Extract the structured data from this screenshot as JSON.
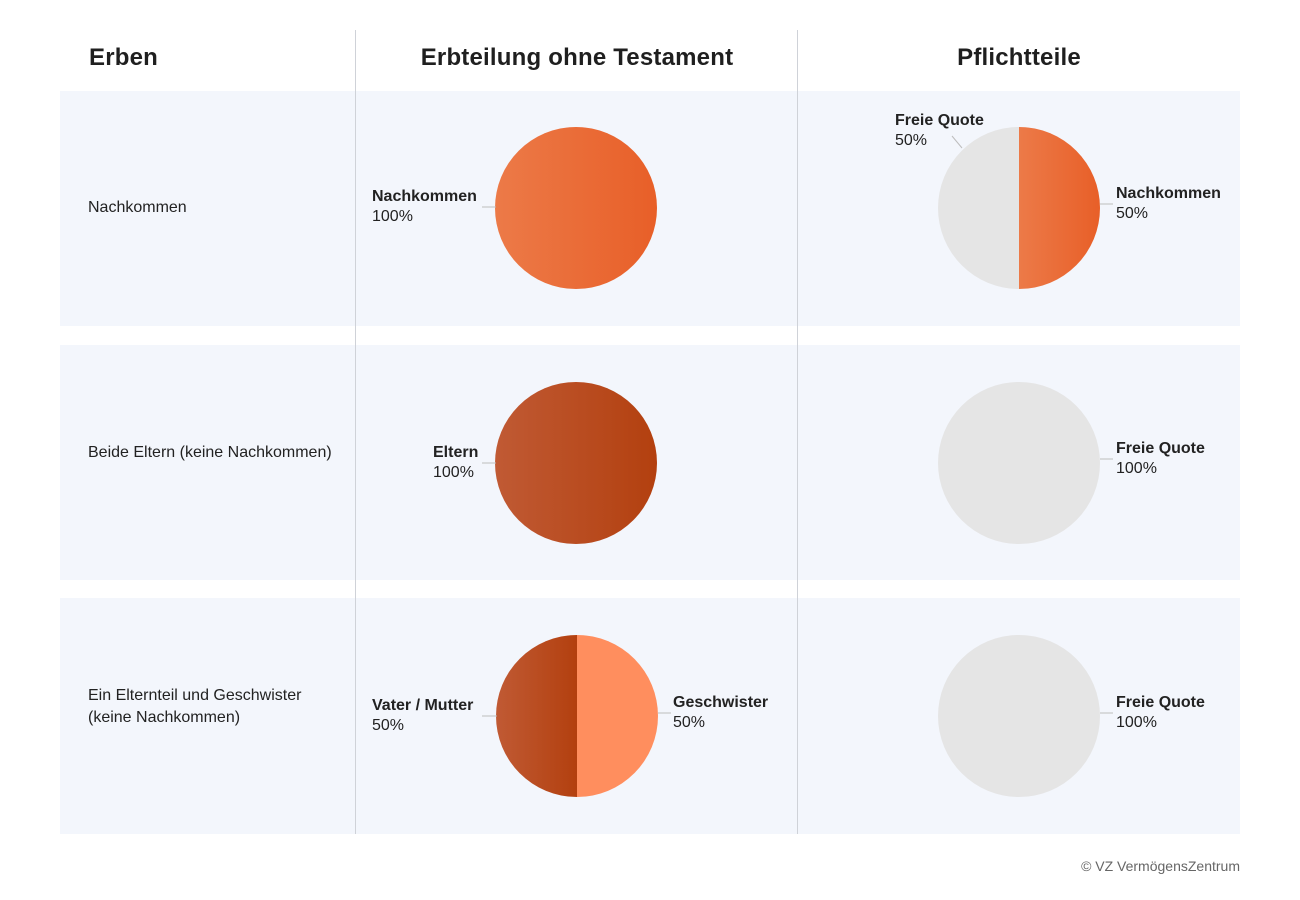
{
  "headers": {
    "heirs": "Erben",
    "intestate": "Erbteilung ohne Testament",
    "compulsory": "Pflichtteile"
  },
  "colors": {
    "descendants": "#ea6330",
    "parents": "#b9461b",
    "siblings": "#ff8e5e",
    "free_quota": "#e5e5e5",
    "band": "#f3f6fc"
  },
  "rows": [
    {
      "heir_line1": "Nachkommen",
      "heir_line2": ""
    },
    {
      "heir_line1": "Beide Eltern (keine Nachkommen)",
      "heir_line2": ""
    },
    {
      "heir_line1": "Ein Elternteil und Geschwister",
      "heir_line2": "(keine Nachkommen)"
    }
  ],
  "chart_data": [
    {
      "type": "pie",
      "row": "Nachkommen",
      "column": "Erbteilung ohne Testament",
      "slices": [
        {
          "label": "Nachkommen",
          "display": "100%",
          "value": 100,
          "color": "#ea6330"
        }
      ]
    },
    {
      "type": "pie",
      "row": "Nachkommen",
      "column": "Pflichtteile",
      "slices": [
        {
          "label": "Nachkommen",
          "display": "50%",
          "value": 50,
          "color": "#ea6330"
        },
        {
          "label": "Freie Quote",
          "display": "50%",
          "value": 50,
          "color": "#e5e5e5"
        }
      ]
    },
    {
      "type": "pie",
      "row": "Beide Eltern (keine Nachkommen)",
      "column": "Erbteilung ohne Testament",
      "slices": [
        {
          "label": "Eltern",
          "display": "100%",
          "value": 100,
          "color": "#b9461b"
        }
      ]
    },
    {
      "type": "pie",
      "row": "Beide Eltern (keine Nachkommen)",
      "column": "Pflichtteile",
      "slices": [
        {
          "label": "Freie Quote",
          "display": "100%",
          "value": 100,
          "color": "#e5e5e5"
        }
      ]
    },
    {
      "type": "pie",
      "row": "Ein Elternteil und Geschwister (keine Nachkommen)",
      "column": "Erbteilung ohne Testament",
      "slices": [
        {
          "label": "Geschwister",
          "display": "50%",
          "value": 50,
          "color": "#ff8e5e"
        },
        {
          "label": "Vater / Mutter",
          "display": "50%",
          "value": 50,
          "color": "#b9461b"
        }
      ]
    },
    {
      "type": "pie",
      "row": "Ein Elternteil und Geschwister (keine Nachkommen)",
      "column": "Pflichtteile",
      "slices": [
        {
          "label": "Freie Quote",
          "display": "100%",
          "value": 100,
          "color": "#e5e5e5"
        }
      ]
    }
  ],
  "footer": "© VZ VermögensZentrum"
}
